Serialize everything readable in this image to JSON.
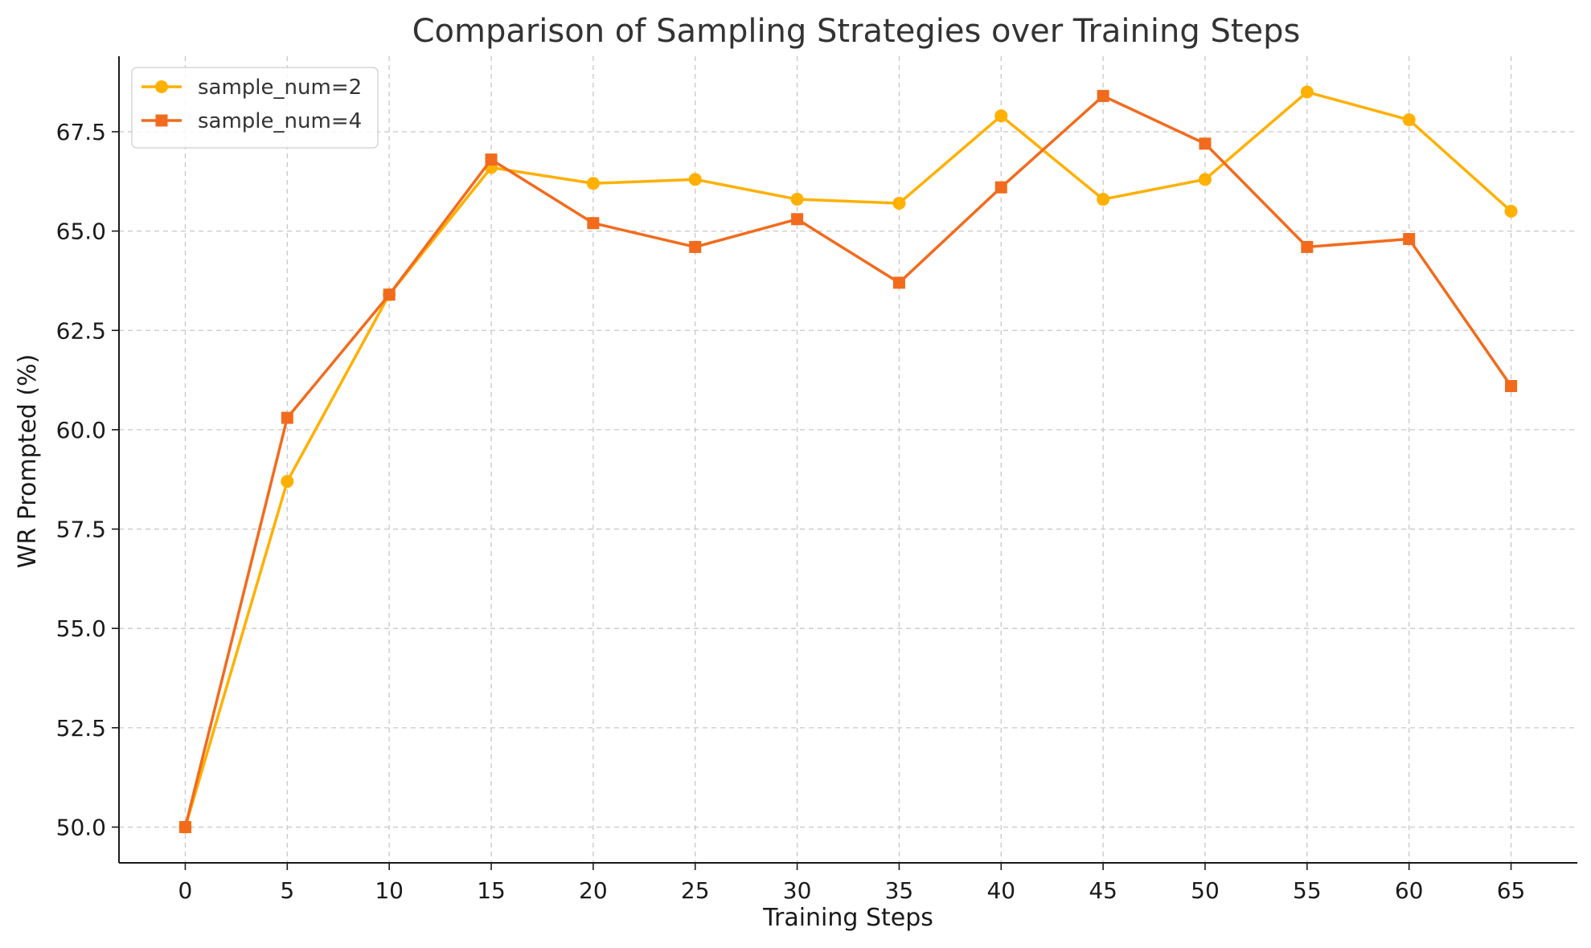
{
  "chart_data": {
    "type": "line",
    "title": "Comparison of Sampling Strategies over Training Steps",
    "xlabel": "Training Steps",
    "ylabel": "WR Prompted (%)",
    "x": [
      0,
      5,
      10,
      15,
      20,
      25,
      30,
      35,
      40,
      45,
      50,
      55,
      60,
      65
    ],
    "xlim": [
      -3.25,
      68.25
    ],
    "ylim": [
      49.1,
      69.4
    ],
    "xticks": [
      0,
      5,
      10,
      15,
      20,
      25,
      30,
      35,
      40,
      45,
      50,
      55,
      60,
      65
    ],
    "xtick_labels": [
      "0",
      "5",
      "10",
      "15",
      "20",
      "25",
      "30",
      "35",
      "40",
      "45",
      "50",
      "55",
      "60",
      "65"
    ],
    "yticks": [
      50.0,
      52.5,
      55.0,
      57.5,
      60.0,
      62.5,
      65.0,
      67.5
    ],
    "ytick_labels": [
      "50.0",
      "52.5",
      "55.0",
      "57.5",
      "60.0",
      "62.5",
      "65.0",
      "67.5"
    ],
    "grid": true,
    "legend_position": "top-left",
    "series": [
      {
        "name": "sample_num=2",
        "marker": "circle",
        "color": "#FFB000",
        "values": [
          50.0,
          58.7,
          63.4,
          66.6,
          66.2,
          66.3,
          65.8,
          65.7,
          67.9,
          65.8,
          66.3,
          68.5,
          67.8,
          65.5
        ]
      },
      {
        "name": "sample_num=4",
        "marker": "square",
        "color": "#F26B1D",
        "values": [
          50.0,
          60.3,
          63.4,
          66.8,
          65.2,
          64.6,
          65.3,
          63.7,
          66.1,
          68.4,
          67.2,
          64.6,
          64.8,
          61.1
        ]
      }
    ]
  }
}
